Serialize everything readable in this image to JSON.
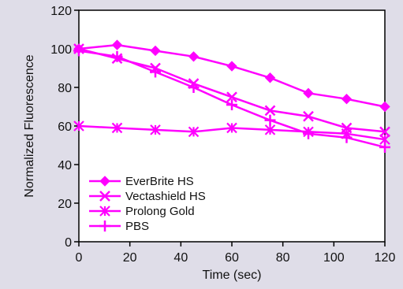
{
  "chart_data": {
    "type": "line",
    "title": "",
    "xlabel": "Time (sec)",
    "ylabel": "Normalized Fluorescence",
    "xlim": [
      0,
      120
    ],
    "ylim": [
      0,
      120
    ],
    "x_ticks": [
      "0",
      "20",
      "40",
      "60",
      "80",
      "100",
      "120"
    ],
    "y_ticks": [
      "0",
      "20",
      "40",
      "60",
      "80",
      "100",
      "120"
    ],
    "grid": false,
    "legend_position": "bottom-left",
    "line_color": "#ff00ff",
    "series": [
      {
        "name": "EverBrite HS",
        "marker": "diamond",
        "x": [
          0,
          15,
          30,
          45,
          60,
          75,
          90,
          105,
          120
        ],
        "y": [
          100,
          102,
          99,
          96,
          91,
          85,
          77,
          74,
          70
        ]
      },
      {
        "name": "Vectashield HS",
        "marker": "x",
        "x": [
          0,
          15,
          30,
          45,
          60,
          75,
          90,
          105,
          120
        ],
        "y": [
          100,
          95,
          90,
          82,
          75,
          68,
          65,
          59,
          57
        ]
      },
      {
        "name": "Prolong Gold",
        "marker": "asterisk",
        "x": [
          0,
          15,
          30,
          45,
          60,
          75,
          90,
          105,
          120
        ],
        "y": [
          60,
          59,
          58,
          57,
          59,
          58,
          57,
          56,
          53
        ]
      },
      {
        "name": "PBS",
        "marker": "plus",
        "x": [
          0,
          15,
          30,
          45,
          60,
          75,
          90,
          105,
          120
        ],
        "y": [
          99,
          96,
          88,
          80,
          71,
          63,
          56,
          54,
          49
        ]
      }
    ]
  }
}
